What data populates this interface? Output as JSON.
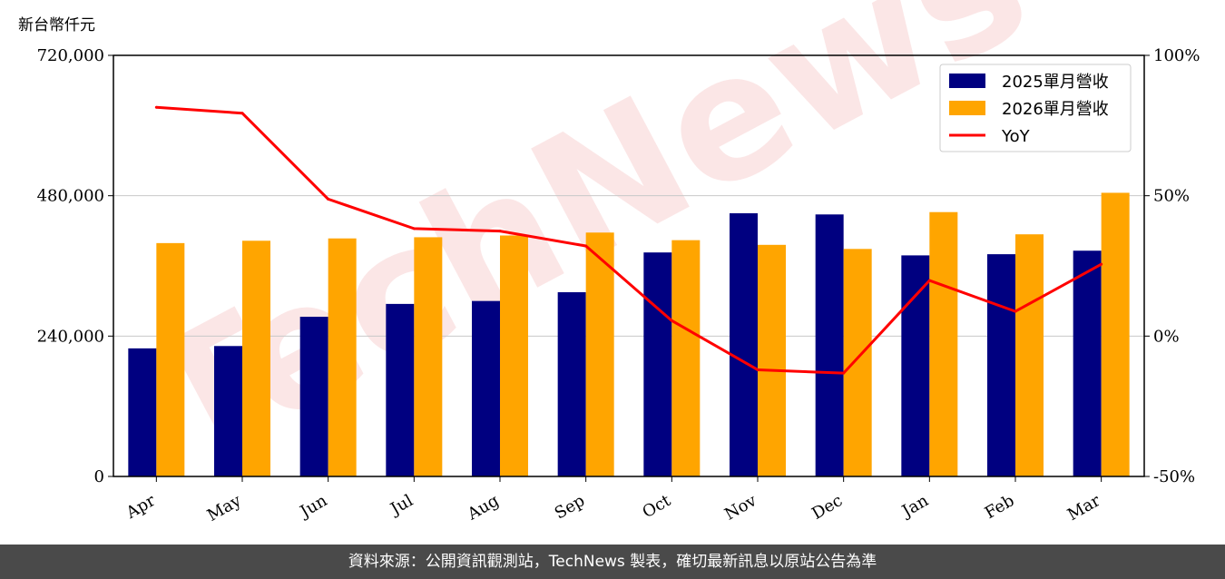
{
  "watermark": "TechNews",
  "footer": "資料來源：公開資訊觀測站，TechNews 製表，確切最新訊息以原站公告為準",
  "chart_data": {
    "type": "bar",
    "unit_label": "新台幣仟元",
    "categories": [
      "Apr",
      "May",
      "Jun",
      "Jul",
      "Aug",
      "Sep",
      "Oct",
      "Nov",
      "Dec",
      "Jan",
      "Feb",
      "Mar"
    ],
    "series": [
      {
        "name": "2025單月營收",
        "type": "bar",
        "color": "#000080",
        "axis": "left",
        "values": [
          219000,
          223000,
          273000,
          295000,
          300000,
          315000,
          383000,
          450000,
          448000,
          378000,
          380000,
          386000
        ]
      },
      {
        "name": "2026單月營收",
        "type": "bar",
        "color": "#ffa500",
        "axis": "left",
        "values": [
          399000,
          403000,
          407000,
          409000,
          412000,
          417000,
          404000,
          396000,
          389000,
          452000,
          414000,
          485000
        ]
      },
      {
        "name": "YoY",
        "type": "line",
        "color": "#ff0000",
        "axis": "right",
        "values": [
          81.5,
          79.4,
          48.8,
          38.3,
          37.4,
          32.1,
          5.5,
          -12.0,
          -13.2,
          19.8,
          8.8,
          25.6
        ]
      }
    ],
    "left_axis": {
      "ylim": [
        0,
        720000
      ],
      "ticks": [
        "0",
        "240,000",
        "480,000",
        "720,000"
      ],
      "tick_values": [
        0,
        240000,
        480000,
        720000
      ]
    },
    "right_axis": {
      "ylim": [
        -50,
        100
      ],
      "ticks": [
        "-50%",
        "0%",
        "50%",
        "100%"
      ],
      "tick_values": [
        -50,
        0,
        50,
        100
      ]
    },
    "grid": "horizontal",
    "legend": "top-right"
  }
}
